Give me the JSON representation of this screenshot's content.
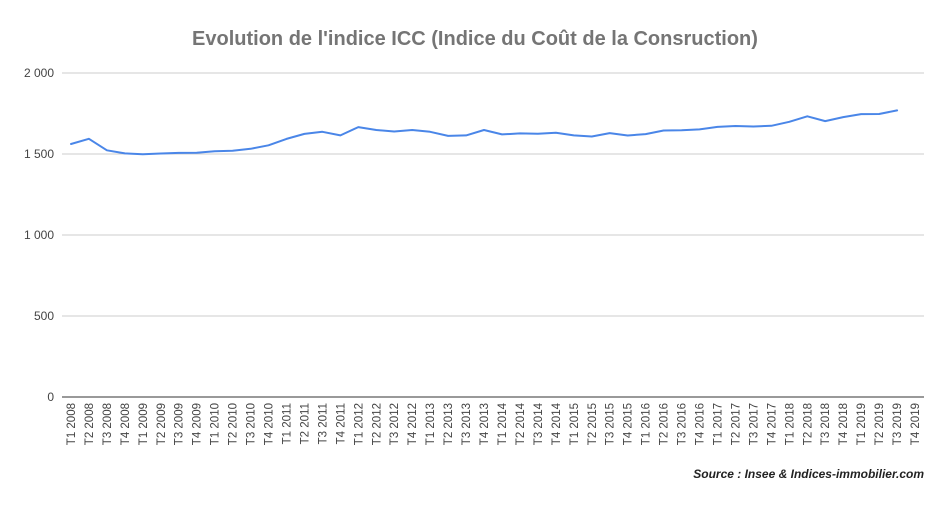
{
  "chart_data": {
    "type": "line",
    "title": "Evolution de l'indice ICC (Indice du Coût de la Consruction)",
    "xlabel": "",
    "ylabel": "",
    "ylim": [
      0,
      2000
    ],
    "yticks": [
      0,
      500,
      1000,
      1500,
      2000
    ],
    "ytick_labels": [
      "0",
      "500",
      "1 000",
      "1 500",
      "2 000"
    ],
    "grid": true,
    "legend": "none",
    "line_color": "#4a86e8",
    "categories": [
      "T1 2008",
      "T2 2008",
      "T3 2008",
      "T4 2008",
      "T1 2009",
      "T2 2009",
      "T3 2009",
      "T4 2009",
      "T1 2010",
      "T2 2010",
      "T3 2010",
      "T4 2010",
      "T1 2011",
      "T2 2011",
      "T3 2011",
      "T4 2011",
      "T1 2012",
      "T2 2012",
      "T3 2012",
      "T4 2012",
      "T1 2013",
      "T2 2013",
      "T3 2013",
      "T4 2013",
      "T1 2014",
      "T2 2014",
      "T3 2014",
      "T4 2014",
      "T1 2015",
      "T2 2015",
      "T3 2015",
      "T4 2015",
      "T1 2016",
      "T2 2016",
      "T3 2016",
      "T4 2016",
      "T1 2017",
      "T2 2017",
      "T3 2017",
      "T4 2017",
      "T1 2018",
      "T2 2018",
      "T3 2018",
      "T4 2018",
      "T1 2019",
      "T2 2019",
      "T3 2019",
      "T4 2019"
    ],
    "series": [
      {
        "values": [
          1562,
          1594,
          1523,
          1504,
          1498,
          1503,
          1507,
          1508,
          1517,
          1520,
          1532,
          1554,
          1593,
          1624,
          1637,
          1615,
          1666,
          1648,
          1639,
          1648,
          1637,
          1612,
          1615,
          1648,
          1621,
          1627,
          1625,
          1631,
          1615,
          1608,
          1629,
          1614,
          1623,
          1645,
          1647,
          1652,
          1667,
          1673,
          1670,
          1674,
          1699,
          1733,
          1703,
          1728,
          1746,
          1747,
          1769,
          null
        ]
      }
    ],
    "source": "Source : Insee & Indices-immobilier.com"
  }
}
